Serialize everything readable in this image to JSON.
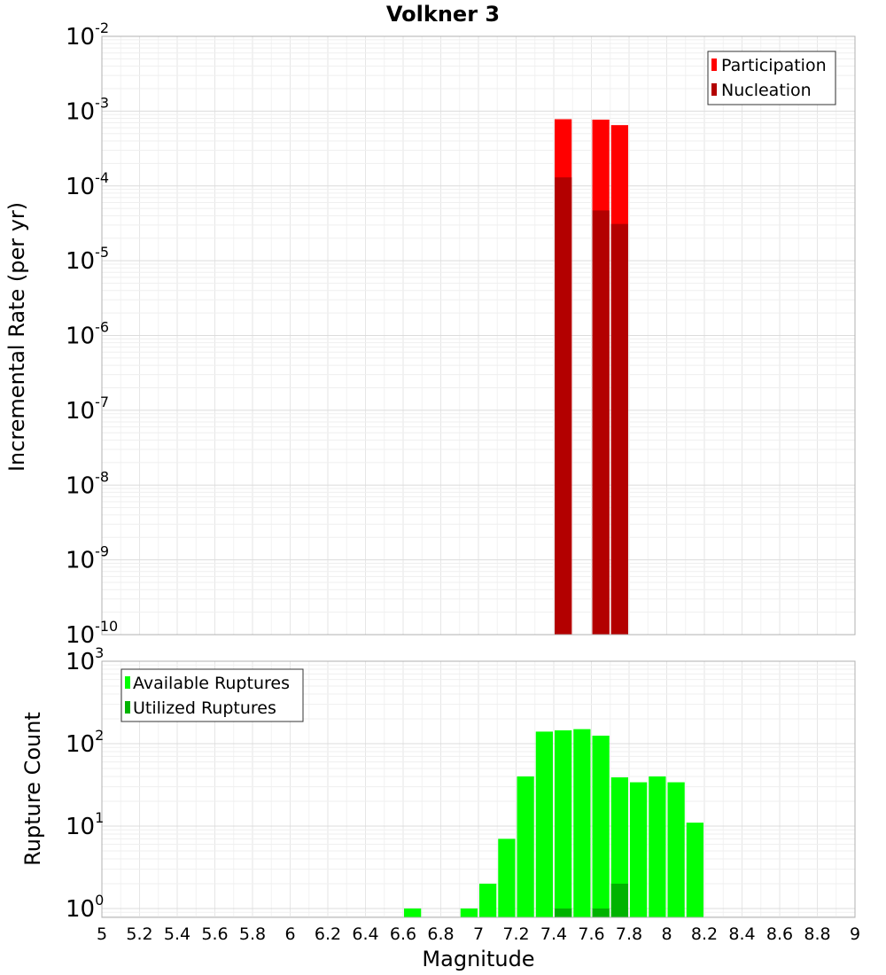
{
  "title": "Volkner 3",
  "chart_data": [
    {
      "type": "bar",
      "scale": "log",
      "ylabel": "Incremental Rate (per yr)",
      "ylim": [
        1e-10,
        0.01
      ],
      "xlim": [
        5,
        9
      ],
      "grid": true,
      "legend_position": "top-right",
      "series": [
        {
          "name": "Participation",
          "color": "#ff0000",
          "points": [
            {
              "x": 7.45,
              "y": 0.00078
            },
            {
              "x": 7.65,
              "y": 0.00077
            },
            {
              "x": 7.75,
              "y": 0.00065
            }
          ]
        },
        {
          "name": "Nucleation",
          "color": "#b30000",
          "points": [
            {
              "x": 7.45,
              "y": 0.00013
            },
            {
              "x": 7.65,
              "y": 4.7e-05
            },
            {
              "x": 7.75,
              "y": 3.1e-05
            }
          ]
        }
      ],
      "ytick_exponents": [
        "-2",
        "-3",
        "-4",
        "-5",
        "-6",
        "-7",
        "-8",
        "-9",
        "-10"
      ]
    },
    {
      "type": "bar",
      "scale": "log",
      "xlabel": "Magnitude",
      "ylabel": "Rupture Count",
      "xlim": [
        5,
        9
      ],
      "grid": true,
      "legend_position": "top-left",
      "series": [
        {
          "name": "Available Ruptures",
          "color": "#00ff00",
          "points": [
            {
              "x": 6.65,
              "y": 1
            },
            {
              "x": 6.95,
              "y": 1
            },
            {
              "x": 7.05,
              "y": 2
            },
            {
              "x": 7.15,
              "y": 7
            },
            {
              "x": 7.25,
              "y": 40
            },
            {
              "x": 7.35,
              "y": 140
            },
            {
              "x": 7.45,
              "y": 145
            },
            {
              "x": 7.55,
              "y": 150
            },
            {
              "x": 7.65,
              "y": 125
            },
            {
              "x": 7.75,
              "y": 39
            },
            {
              "x": 7.85,
              "y": 34
            },
            {
              "x": 7.95,
              "y": 40
            },
            {
              "x": 8.05,
              "y": 34
            },
            {
              "x": 8.15,
              "y": 11
            }
          ]
        },
        {
          "name": "Utilized Ruptures",
          "color": "#00b300",
          "points": [
            {
              "x": 7.45,
              "y": 1
            },
            {
              "x": 7.65,
              "y": 1
            },
            {
              "x": 7.75,
              "y": 2
            }
          ]
        }
      ],
      "ytick_exponents": [
        "3",
        "2",
        "1",
        "0"
      ]
    }
  ],
  "x_ticks": [
    "5",
    "5.2",
    "5.4",
    "5.6",
    "5.8",
    "6",
    "6.2",
    "6.4",
    "6.6",
    "6.8",
    "7",
    "7.2",
    "7.4",
    "7.6",
    "7.8",
    "8",
    "8.2",
    "8.4",
    "8.6",
    "8.8",
    "9"
  ],
  "ytick_base": "10"
}
